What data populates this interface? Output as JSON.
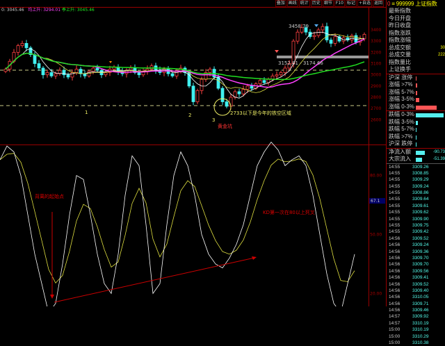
{
  "toolbar": [
    "叠加",
    "画线",
    "统计",
    "历史",
    "细节",
    "F10",
    "标记",
    "+自选",
    "返回"
  ],
  "header": {
    "icon": "0",
    "symbol": "≡ 999999",
    "name": "上证指数"
  },
  "legend": {
    "ma1": "0: 3045.46",
    "ma2": "均上升: 3294.01",
    "ma3": "季上升: 3045.46"
  },
  "info_rows": [
    {
      "label": "最新指数",
      "value": ""
    },
    {
      "label": "今日开盘",
      "value": ""
    },
    {
      "label": "昨日收盘",
      "value": ""
    },
    {
      "label": "指数涨跌",
      "value": ""
    },
    {
      "label": "指数涨幅",
      "value": ""
    },
    {
      "label": "总成交额",
      "value": "30"
    },
    {
      "label": "总成交量",
      "value": "222"
    },
    {
      "label": "指数量比",
      "value": ""
    },
    {
      "label": "上证换手",
      "value": ""
    }
  ],
  "breadth_up": [
    {
      "label": "沪深 涨停",
      "bar": 0.02
    },
    {
      "label": "涨幅 >7%",
      "bar": 0.05
    },
    {
      "label": "涨幅 5-7%",
      "bar": 0.05
    },
    {
      "label": "涨幅 3-5%",
      "bar": 0.12
    },
    {
      "label": "涨幅 0-3%",
      "bar": 0.8
    }
  ],
  "breadth_down": [
    {
      "label": "跌幅 0-3%",
      "bar": 1.0
    },
    {
      "label": "跌幅 3-5%",
      "bar": 0.08
    },
    {
      "label": "跌幅 5-7%",
      "bar": 0.02
    },
    {
      "label": "跌幅 >7%",
      "bar": 0.02
    },
    {
      "label": "沪深 跌停",
      "bar": 0.0
    }
  ],
  "flows": [
    {
      "label": "净流入额",
      "value": "-90.73",
      "bar": 0.6
    },
    {
      "label": "大宗流入",
      "value": "-51.39",
      "bar": 0.4
    }
  ],
  "ticks": [
    [
      "14:55",
      "3309.26"
    ],
    [
      "14:55",
      "3308.85"
    ],
    [
      "14:55",
      "3309.29"
    ],
    [
      "14:55",
      "3309.24"
    ],
    [
      "14:55",
      "3308.86"
    ],
    [
      "14:55",
      "3309.64"
    ],
    [
      "14:55",
      "3309.61"
    ],
    [
      "14:55",
      "3309.62"
    ],
    [
      "14:55",
      "3309.90"
    ],
    [
      "14:55",
      "3309.75"
    ],
    [
      "14:55",
      "3309.42"
    ],
    [
      "14:56",
      "3309.52"
    ],
    [
      "14:56",
      "3309.24"
    ],
    [
      "14:56",
      "3309.36"
    ],
    [
      "14:56",
      "3309.70"
    ],
    [
      "14:56",
      "3309.70"
    ],
    [
      "14:56",
      "3309.56"
    ],
    [
      "14:56",
      "3309.41"
    ],
    [
      "14:56",
      "3309.52"
    ],
    [
      "14:56",
      "3309.40"
    ],
    [
      "14:56",
      "3310.05"
    ],
    [
      "14:56",
      "3309.71"
    ],
    [
      "14:56",
      "3309.46"
    ],
    [
      "14:57",
      "3309.92"
    ],
    [
      "14:57",
      "3310.19"
    ],
    [
      "15:00",
      "3310.19"
    ],
    [
      "15:00",
      "3310.29"
    ],
    [
      "15:00",
      "3310.38"
    ]
  ],
  "price_axis": [
    "3400",
    "3300",
    "3200",
    "3100",
    "3000",
    "2900",
    "2800",
    "2700",
    "2600"
  ],
  "kd_axis": [
    "80.00",
    "50.00",
    "20.00"
  ],
  "kd_marker": "67.1",
  "annotations": {
    "high": "3458.79",
    "gap": "3152.81 - 3174.66",
    "support": "2733以下是今年的铁空区域",
    "pit": "黄金坑",
    "n1": "1",
    "n2": "2",
    "n3": "3",
    "diverge": "背离的起始点",
    "deadcross": "KD第一次在80以上死叉"
  },
  "colors": {
    "up": "#ff4040",
    "down": "#40f0f0",
    "ma5": "#ffffff",
    "ma10": "#e0e040",
    "ma20": "#ff40ff",
    "ma60": "#20e020"
  },
  "chart": {
    "closes": [
      3050,
      3120,
      3200,
      3260,
      3280,
      3240,
      3180,
      3100,
      3060,
      3000,
      3020,
      2990,
      3010,
      3040,
      3000,
      2980,
      3020,
      3050,
      3010,
      2990,
      3030,
      3060,
      3040,
      3000,
      3020,
      3050,
      3070,
      3030,
      3010,
      3040,
      3060,
      3020,
      3000,
      3030,
      3050,
      3080,
      3040,
      3020,
      3050,
      3010,
      2990,
      3030,
      3060,
      3020,
      2900,
      2760,
      2860,
      2960,
      3020,
      3050,
      2980,
      2880,
      2760,
      2720,
      2800,
      2850,
      2830,
      2870,
      2900,
      2880,
      2920,
      2950,
      2930,
      2960,
      2990,
      3000,
      3020,
      3060,
      3100,
      3300,
      3380,
      3420,
      3380,
      3340,
      3350,
      3400,
      3430,
      3310,
      3280,
      3340,
      3300,
      3330,
      3310,
      3350,
      3290,
      3320,
      3360
    ],
    "k": [
      88,
      95,
      92,
      80,
      60,
      40,
      25,
      10,
      15,
      35,
      60,
      80,
      78,
      60,
      40,
      25,
      20,
      40,
      70,
      90,
      85,
      55,
      20,
      25,
      55,
      80,
      92,
      85,
      70,
      50,
      40,
      35,
      33,
      38,
      45,
      55,
      70,
      85,
      92,
      97,
      93,
      85,
      88,
      90,
      85,
      70,
      50,
      30,
      15,
      10,
      25,
      40
    ]
  }
}
